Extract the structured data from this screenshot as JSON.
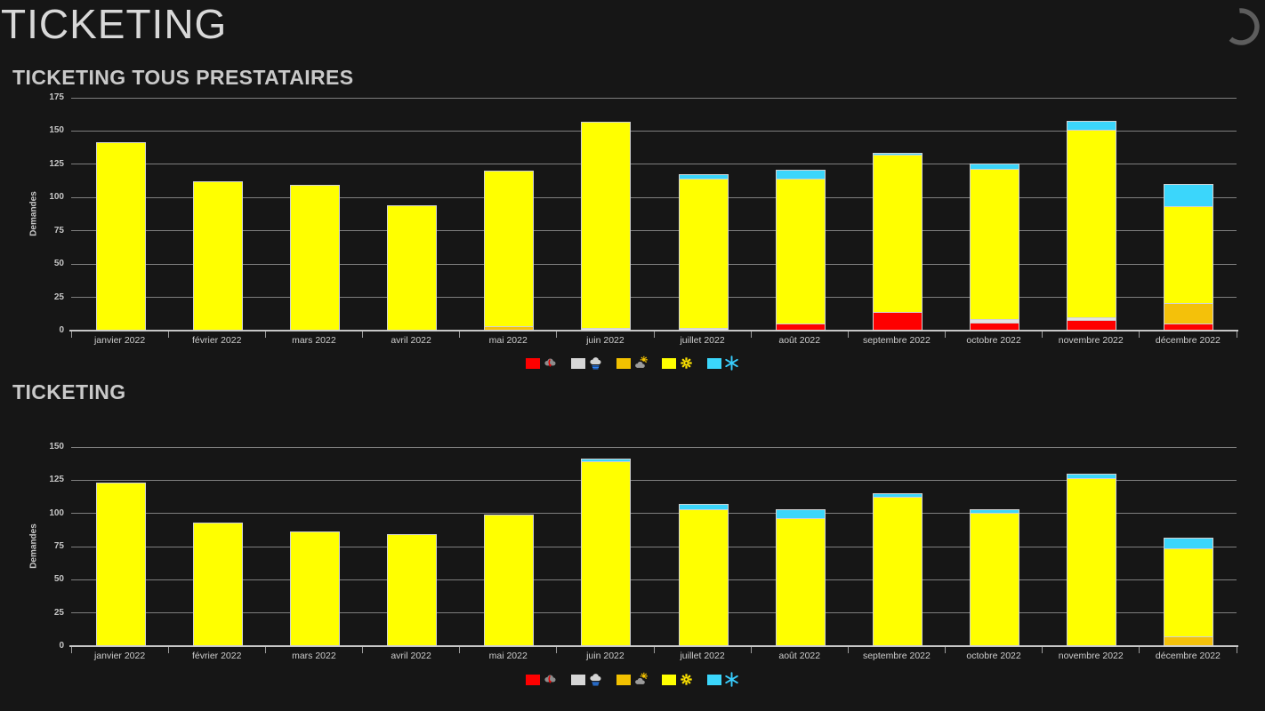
{
  "page": {
    "title": "TICKETING",
    "background": "#161616"
  },
  "icons": {
    "header_spinner": "loading-spinner-arc"
  },
  "legend": {
    "items": [
      {
        "icon": "storm-icon",
        "color": "#fe0000"
      },
      {
        "icon": "rain-cloud-icon",
        "color": "#d6d6d6"
      },
      {
        "icon": "sun-cloud-icon",
        "color": "#f2c100"
      },
      {
        "icon": "sun-icon",
        "color": "#ffff00"
      },
      {
        "icon": "snowflake-icon",
        "color": "#3bd6fb"
      }
    ]
  },
  "chart_data": [
    {
      "type": "bar",
      "stacked": true,
      "title": "TICKETING TOUS PRESTATAIRES",
      "xlabel": "",
      "ylabel": "Demandes",
      "ylim": [
        0,
        175
      ],
      "yticks": [
        0,
        25,
        50,
        75,
        100,
        125,
        150,
        175
      ],
      "grid": true,
      "legend_position": "bottom",
      "categories": [
        "janvier 2022",
        "février 2022",
        "mars 2022",
        "avril 2022",
        "mai 2022",
        "juin 2022",
        "juillet 2022",
        "août 2022",
        "septembre 2022",
        "octobre 2022",
        "novembre 2022",
        "décembre 2022"
      ],
      "series": [
        {
          "name": "storm",
          "icon": "storm-icon",
          "color": "#fe0000",
          "values": [
            0,
            0,
            0,
            0,
            0,
            0,
            0,
            4,
            13,
            5,
            7,
            4
          ]
        },
        {
          "name": "rain",
          "icon": "rain-cloud-icon",
          "color": "#e4e4e4",
          "values": [
            0,
            0,
            0,
            0,
            0,
            1,
            1,
            0,
            0,
            2,
            1,
            0
          ]
        },
        {
          "name": "partly-cloudy",
          "icon": "sun-cloud-icon",
          "color": "#f4c10a",
          "values": [
            0,
            0,
            0,
            0,
            2,
            0,
            0,
            0,
            0,
            0,
            0,
            15
          ]
        },
        {
          "name": "sunny",
          "icon": "sun-icon",
          "color": "#ffff00",
          "values": [
            140,
            111,
            108,
            93,
            116,
            154,
            111,
            108,
            117,
            112,
            140,
            72
          ]
        },
        {
          "name": "snow",
          "icon": "snowflake-icon",
          "color": "#3bd6fb",
          "values": [
            0,
            0,
            0,
            0,
            0,
            0,
            3,
            6,
            1,
            3,
            6,
            16
          ]
        }
      ]
    },
    {
      "type": "bar",
      "stacked": true,
      "title": "TICKETING",
      "xlabel": "",
      "ylabel": "Demandes",
      "ylim": [
        0,
        150
      ],
      "yticks": [
        0,
        25,
        50,
        75,
        100,
        125,
        150
      ],
      "grid": true,
      "legend_position": "bottom",
      "categories": [
        "janvier 2022",
        "février 2022",
        "mars 2022",
        "avril 2022",
        "mai 2022",
        "juin 2022",
        "juillet 2022",
        "août 2022",
        "septembre 2022",
        "octobre 2022",
        "novembre 2022",
        "décembre 2022"
      ],
      "series": [
        {
          "name": "storm",
          "icon": "storm-icon",
          "color": "#fe0000",
          "values": [
            0,
            0,
            0,
            0,
            0,
            0,
            0,
            0,
            0,
            0,
            0,
            0
          ]
        },
        {
          "name": "rain",
          "icon": "rain-cloud-icon",
          "color": "#e4e4e4",
          "values": [
            0,
            0,
            0,
            0,
            0,
            0,
            0,
            0,
            0,
            0,
            0,
            0
          ]
        },
        {
          "name": "partly-cloudy",
          "icon": "sun-cloud-icon",
          "color": "#f4c10a",
          "values": [
            0,
            0,
            0,
            0,
            0,
            0,
            0,
            0,
            0,
            0,
            0,
            6
          ]
        },
        {
          "name": "sunny",
          "icon": "sun-icon",
          "color": "#ffff00",
          "values": [
            122,
            92,
            85,
            83,
            98,
            138,
            102,
            95,
            111,
            99,
            125,
            66
          ]
        },
        {
          "name": "snow",
          "icon": "snowflake-icon",
          "color": "#3bd6fb",
          "values": [
            0,
            0,
            0,
            0,
            0,
            1,
            3,
            6,
            2,
            2,
            3,
            7
          ]
        }
      ]
    }
  ]
}
